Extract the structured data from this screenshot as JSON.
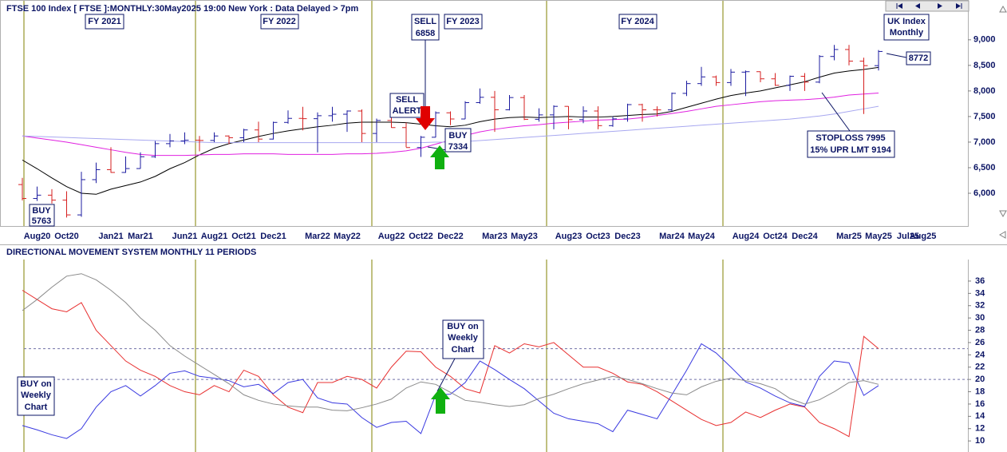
{
  "chart_data": [
    {
      "type": "ohlc",
      "title": "FTSE 100 Index [ FTSE ]:MONTHLY:30May2025 19:00 New York : Data Delayed > 7pm",
      "categories": [
        null,
        "Aug20",
        null,
        "Oct20",
        null,
        null,
        "Jan21",
        null,
        "Mar21",
        null,
        null,
        "Jun21",
        null,
        "Aug21",
        null,
        "Oct21",
        null,
        "Dec21",
        null,
        null,
        "Mar22",
        null,
        "May22",
        null,
        null,
        "Aug22",
        null,
        "Oct22",
        null,
        "Dec22",
        null,
        null,
        "Mar23",
        null,
        "May23",
        null,
        null,
        "Aug23",
        null,
        "Oct23",
        null,
        "Dec23",
        null,
        null,
        "Mar24",
        null,
        "May24",
        null,
        null,
        "Aug24",
        null,
        "Oct24",
        null,
        "Dec24",
        null,
        null,
        "Mar25",
        null,
        "May25",
        null,
        "Jul25",
        "Aug25"
      ],
      "open": [
        6170,
        5898,
        5963,
        5866,
        5577,
        6266,
        6461,
        6407,
        6483,
        6714,
        6970,
        7023,
        7037,
        7032,
        7120,
        7086,
        7238,
        7059,
        7385,
        7464,
        7458,
        7516,
        7545,
        7608,
        7169,
        7423,
        7284,
        6894,
        7095,
        7573,
        7452,
        7772,
        7876,
        7632,
        7871,
        7446,
        7532,
        7699,
        7439,
        7608,
        7322,
        7454,
        7733,
        7631,
        7630,
        7953,
        8144,
        8275,
        8164,
        8368,
        8377,
        8237,
        8110,
        8287,
        8173,
        8674,
        8810,
        8583,
        8495,
        null,
        null,
        null
      ],
      "high": [
        6300,
        6130,
        6080,
        6040,
        6420,
        6600,
        6900,
        6720,
        6800,
        7020,
        7160,
        7190,
        7120,
        7190,
        7130,
        7260,
        7400,
        7400,
        7620,
        7690,
        7580,
        7690,
        7620,
        7640,
        7460,
        7560,
        7380,
        7120,
        7600,
        7600,
        7800,
        8050,
        8000,
        7920,
        7920,
        7660,
        7720,
        7700,
        7700,
        7700,
        7500,
        7750,
        7750,
        7700,
        7970,
        8200,
        8470,
        8300,
        8430,
        8400,
        8380,
        8350,
        8300,
        8350,
        8700,
        8900,
        8900,
        8650,
        8800,
        null,
        null,
        null
      ],
      "low": [
        5860,
        5850,
        5800,
        5526,
        5540,
        6200,
        6400,
        6400,
        6480,
        6690,
        6900,
        6960,
        6820,
        7000,
        6960,
        7000,
        7000,
        7050,
        7360,
        7230,
        6800,
        7400,
        7200,
        7000,
        7000,
        7280,
        6900,
        6710,
        7090,
        7330,
        7450,
        7750,
        7200,
        7620,
        7430,
        7400,
        7250,
        7250,
        7370,
        7250,
        7300,
        7400,
        7400,
        7500,
        7600,
        7900,
        8100,
        8100,
        8100,
        7900,
        8170,
        8100,
        8000,
        8000,
        8150,
        8600,
        8500,
        7550,
        8400,
        null,
        null,
        null
      ],
      "close": [
        5898,
        5963,
        5866,
        5577,
        6266,
        6461,
        6407,
        6483,
        6714,
        6970,
        7023,
        7037,
        7032,
        7120,
        7086,
        7238,
        7059,
        7385,
        7464,
        7458,
        7516,
        7545,
        7608,
        7169,
        7423,
        7284,
        6894,
        7095,
        7573,
        7452,
        7772,
        7876,
        7632,
        7871,
        7446,
        7532,
        7699,
        7439,
        7608,
        7322,
        7454,
        7733,
        7631,
        7630,
        7953,
        8144,
        8275,
        8164,
        8368,
        8377,
        8237,
        8110,
        8287,
        8173,
        8674,
        8810,
        8583,
        8495,
        8772,
        null,
        null,
        null
      ],
      "up_color": "#1c1ca0",
      "down_color": "#d62020",
      "lines": [
        {
          "color": "#000000",
          "values": [
            6650,
            6480,
            6300,
            6130,
            6000,
            5980,
            6080,
            6150,
            6220,
            6330,
            6480,
            6600,
            6750,
            6880,
            6970,
            7040,
            7110,
            7170,
            7220,
            7260,
            7300,
            7330,
            7370,
            7390,
            7390,
            7390,
            7380,
            7350,
            7320,
            7300,
            7330,
            7400,
            7450,
            7480,
            7490,
            7480,
            7490,
            7500,
            7490,
            7490,
            7500,
            7520,
            7540,
            7550,
            7600,
            7680,
            7760,
            7840,
            7910,
            7960,
            8000,
            8060,
            8120,
            8180,
            8270,
            8350,
            8390,
            8420,
            8460,
            null,
            null,
            null
          ]
        },
        {
          "color": "#e020e0",
          "values": [
            7120,
            7080,
            7040,
            7000,
            6950,
            6900,
            6850,
            6800,
            6760,
            6740,
            6740,
            6740,
            6750,
            6760,
            6760,
            6770,
            6770,
            6770,
            6760,
            6760,
            6760,
            6760,
            6770,
            6770,
            6780,
            6800,
            6830,
            6880,
            6960,
            7040,
            7130,
            7200,
            7250,
            7290,
            7320,
            7340,
            7370,
            7390,
            7410,
            7430,
            7440,
            7450,
            7480,
            7520,
            7560,
            7600,
            7650,
            7700,
            7730,
            7760,
            7790,
            7810,
            7820,
            7830,
            7850,
            7880,
            7920,
            7940,
            7960,
            null,
            null,
            null
          ]
        },
        {
          "color": "#a8a8f0",
          "values": [
            7120,
            7110,
            7100,
            7090,
            7080,
            7070,
            7060,
            7050,
            7040,
            7030,
            7020,
            7010,
            7000,
            6990,
            6990,
            6990,
            6990,
            6990,
            6990,
            6990,
            6990,
            6990,
            6990,
            6990,
            6990,
            6990,
            6990,
            6990,
            7000,
            7000,
            7010,
            7030,
            7050,
            7070,
            7090,
            7110,
            7130,
            7150,
            7170,
            7190,
            7210,
            7230,
            7250,
            7270,
            7290,
            7310,
            7330,
            7350,
            7370,
            7390,
            7410,
            7430,
            7450,
            7480,
            7510,
            7550,
            7600,
            7650,
            7700,
            null,
            null,
            null
          ]
        }
      ],
      "ylim": [
        5360,
        9700
      ],
      "yticks": [
        {
          "value": 6000,
          "label": "6,000"
        },
        {
          "value": 6500,
          "label": "6,500"
        },
        {
          "value": 7000,
          "label": "7,000"
        },
        {
          "value": 7500,
          "label": "7,500"
        },
        {
          "value": 8000,
          "label": "8,000"
        },
        {
          "value": 8500,
          "label": "8,500"
        },
        {
          "value": 9000,
          "label": "9,000"
        }
      ],
      "annotations": {
        "fy": [
          "FY 2021",
          "FY 2022",
          "FY 2023",
          "FY 2024"
        ],
        "sell": [
          "SELL",
          "6858"
        ],
        "sell_alert": [
          "SELL",
          "ALERT"
        ],
        "buy": [
          "BUY",
          "7334"
        ],
        "buy_low": [
          "BUY",
          "5763"
        ],
        "index_box": [
          "UK Index",
          "Monthly"
        ],
        "last": "8772",
        "stoploss": [
          "STOPLOSS 7995",
          "15% UPR LMT 9194"
        ]
      }
    },
    {
      "type": "line",
      "title": "DIRECTIONAL MOVEMENT SYSTEM MONTHLY 11 PERIODS",
      "lines": [
        {
          "color": "#e83030",
          "values": [
            34.5,
            33,
            31.5,
            31,
            32.5,
            28,
            25.5,
            23,
            21.5,
            20.5,
            19,
            18,
            17.5,
            19,
            18,
            21.5,
            20.5,
            17.5,
            15.5,
            14.6,
            19.5,
            19.5,
            20.5,
            20,
            18.6,
            22,
            24.6,
            24.5,
            22,
            20.5,
            18.5,
            17.8,
            25.5,
            24.3,
            25.8,
            25.3,
            26,
            24,
            22,
            22,
            21,
            19.6,
            19.2,
            18,
            16.5,
            15,
            13.5,
            12.5,
            13,
            14.7,
            13.8,
            15,
            16,
            15.5,
            13,
            12,
            10.7,
            27,
            25,
            null,
            null,
            null
          ]
        },
        {
          "color": "#3a3ae0",
          "values": [
            12.5,
            11.8,
            11,
            10.4,
            12,
            15.5,
            18,
            19,
            17.3,
            19,
            21,
            21.4,
            20.5,
            20.2,
            19.8,
            18.8,
            19.2,
            17.7,
            19.5,
            20,
            17,
            16.2,
            16,
            13.8,
            12.2,
            13,
            13.2,
            11.2,
            17.5,
            17.6,
            19.5,
            23,
            21.6,
            20,
            18.5,
            16.5,
            14.5,
            13.6,
            13.2,
            12.8,
            11.5,
            15,
            14.3,
            13.6,
            17.5,
            21.5,
            25.8,
            24.3,
            22,
            19.6,
            18.6,
            17.3,
            16.2,
            15.6,
            20.5,
            23,
            22.7,
            17.4,
            19,
            null,
            null,
            null
          ]
        },
        {
          "color": "#8a8a8a",
          "values": [
            31.2,
            33,
            35,
            36.8,
            37.2,
            36.2,
            34.5,
            32.5,
            30,
            28,
            25.5,
            23.8,
            22.3,
            20.8,
            19.3,
            17.5,
            16.6,
            16,
            15.7,
            15.5,
            15.5,
            15,
            14.9,
            15.4,
            16,
            16.8,
            18.6,
            19.6,
            19.2,
            17.9,
            16.6,
            16.3,
            15.9,
            15.6,
            15.9,
            16.9,
            17.6,
            18.5,
            19.3,
            19.9,
            20.5,
            20,
            19.3,
            18.5,
            17.8,
            17.5,
            18.8,
            19.7,
            20.2,
            19.8,
            19.3,
            18.5,
            16.9,
            16,
            16.7,
            18,
            19.5,
            19.8,
            19.2,
            null,
            null,
            null
          ]
        }
      ],
      "ref_lines": [
        25,
        20
      ],
      "ylim": [
        8.2,
        39.5
      ],
      "yticks": [
        10,
        12,
        14,
        16,
        18,
        20,
        22,
        24,
        26,
        28,
        30,
        32,
        34,
        36
      ],
      "annotations": {
        "buy_weekly": [
          "BUY on",
          "Weekly",
          "Chart"
        ],
        "buy_chart": [
          "BUY on",
          "Weekly",
          "Chart"
        ]
      }
    }
  ]
}
